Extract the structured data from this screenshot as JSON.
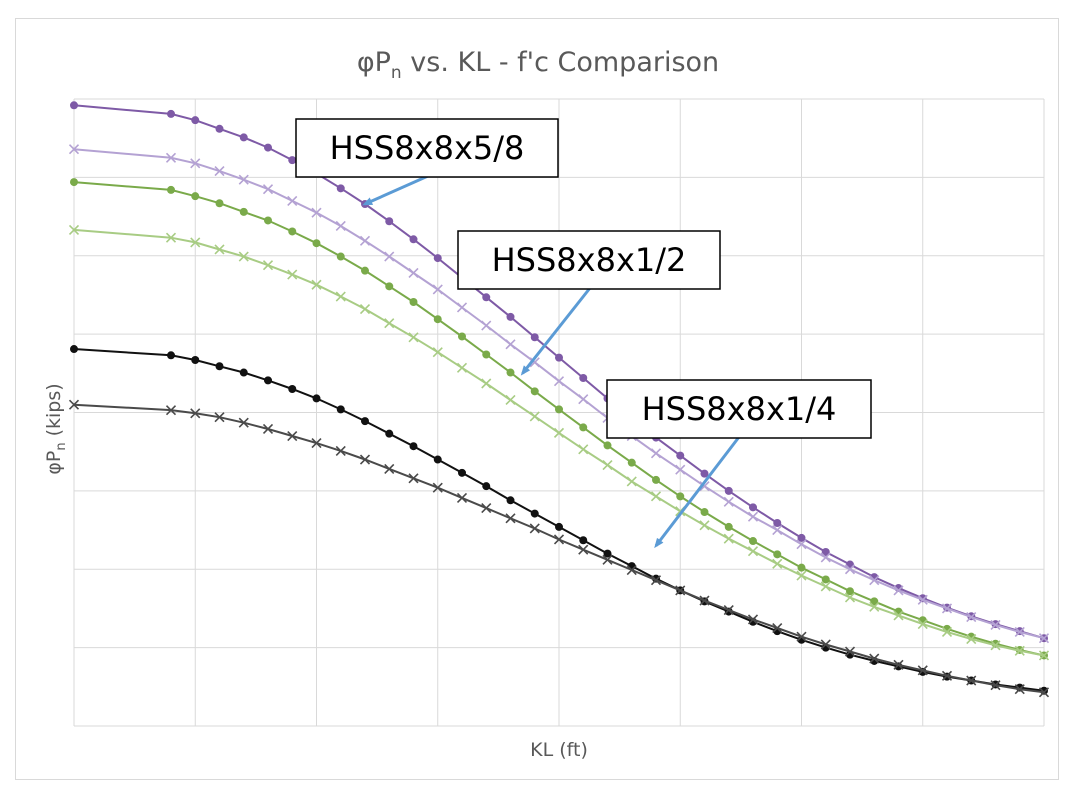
{
  "chart_data": {
    "type": "line",
    "title": "φP",
    "title_sub": "n",
    "title_rest": " vs. KL - f'c Comparison",
    "xlabel": "KL (ft)",
    "ylabel": "φP",
    "ylabel_sub": "n",
    "ylabel_rest": " (kips)",
    "xlim": [
      0,
      40
    ],
    "ylim": [
      0,
      8
    ],
    "grid": true,
    "legend": "none",
    "x": [
      0,
      4,
      5,
      6,
      7,
      8,
      9,
      10,
      11,
      12,
      13,
      14,
      15,
      16,
      17,
      18,
      19,
      20,
      21,
      22,
      23,
      24,
      25,
      26,
      27,
      28,
      29,
      30,
      31,
      32,
      33,
      34,
      35,
      36,
      37,
      38,
      39,
      40
    ],
    "series": [
      {
        "color": "#7e5aa6",
        "marker": "circle",
        "values": [
          7.92,
          7.81,
          7.73,
          7.62,
          7.51,
          7.38,
          7.22,
          7.05,
          6.86,
          6.66,
          6.44,
          6.21,
          5.97,
          5.72,
          5.47,
          5.22,
          4.96,
          4.7,
          4.44,
          4.18,
          3.93,
          3.68,
          3.45,
          3.22,
          3.0,
          2.79,
          2.59,
          2.4,
          2.22,
          2.06,
          1.9,
          1.76,
          1.63,
          1.51,
          1.4,
          1.3,
          1.21,
          1.12
        ]
      },
      {
        "color": "#b4a2d3",
        "marker": "x",
        "values": [
          7.36,
          7.25,
          7.18,
          7.08,
          6.97,
          6.85,
          6.7,
          6.55,
          6.38,
          6.19,
          5.99,
          5.78,
          5.57,
          5.34,
          5.11,
          4.87,
          4.64,
          4.4,
          4.17,
          3.93,
          3.7,
          3.48,
          3.27,
          3.06,
          2.86,
          2.67,
          2.5,
          2.32,
          2.15,
          2.0,
          1.86,
          1.73,
          1.61,
          1.5,
          1.39,
          1.29,
          1.2,
          1.12
        ]
      },
      {
        "color": "#7aaa4a",
        "marker": "circle",
        "values": [
          6.94,
          6.84,
          6.76,
          6.67,
          6.56,
          6.45,
          6.31,
          6.16,
          5.99,
          5.81,
          5.61,
          5.41,
          5.19,
          4.97,
          4.74,
          4.51,
          4.27,
          4.04,
          3.81,
          3.58,
          3.36,
          3.14,
          2.93,
          2.73,
          2.54,
          2.36,
          2.19,
          2.02,
          1.87,
          1.72,
          1.59,
          1.46,
          1.35,
          1.24,
          1.14,
          1.05,
          0.97,
          0.9
        ]
      },
      {
        "color": "#a8cc84",
        "marker": "x",
        "values": [
          6.33,
          6.23,
          6.17,
          6.08,
          5.99,
          5.88,
          5.76,
          5.63,
          5.48,
          5.32,
          5.14,
          4.96,
          4.77,
          4.57,
          4.37,
          4.16,
          3.95,
          3.74,
          3.53,
          3.33,
          3.12,
          2.93,
          2.74,
          2.56,
          2.39,
          2.23,
          2.07,
          1.92,
          1.78,
          1.64,
          1.52,
          1.41,
          1.3,
          1.2,
          1.11,
          1.03,
          0.96,
          0.9
        ]
      },
      {
        "color": "#111111",
        "marker": "circle",
        "values": [
          4.81,
          4.73,
          4.67,
          4.59,
          4.51,
          4.41,
          4.3,
          4.18,
          4.04,
          3.89,
          3.73,
          3.57,
          3.4,
          3.23,
          3.06,
          2.88,
          2.71,
          2.54,
          2.37,
          2.2,
          2.04,
          1.88,
          1.73,
          1.59,
          1.46,
          1.33,
          1.21,
          1.1,
          1.0,
          0.91,
          0.83,
          0.76,
          0.69,
          0.63,
          0.58,
          0.53,
          0.49,
          0.45
        ]
      },
      {
        "color": "#4a4a4a",
        "marker": "x",
        "values": [
          4.1,
          4.03,
          3.99,
          3.94,
          3.87,
          3.79,
          3.7,
          3.61,
          3.51,
          3.4,
          3.28,
          3.16,
          3.04,
          2.91,
          2.78,
          2.65,
          2.52,
          2.38,
          2.25,
          2.12,
          1.99,
          1.86,
          1.73,
          1.6,
          1.48,
          1.36,
          1.25,
          1.14,
          1.04,
          0.95,
          0.86,
          0.78,
          0.71,
          0.64,
          0.58,
          0.52,
          0.47,
          0.43
        ]
      }
    ],
    "annotations": [
      {
        "text": "HSS8x8x5/8",
        "target_x": 12,
        "target_y": 6.66
      },
      {
        "text": "HSS8x8x1/2",
        "target_x": 18.5,
        "target_y": 4.5
      },
      {
        "text": "HSS8x8x1/4",
        "target_x": 24,
        "target_y": 2.3
      }
    ]
  },
  "colors": {
    "grid": "#d9d9d9",
    "text": "#595959",
    "arrow": "#5b9bd5"
  }
}
